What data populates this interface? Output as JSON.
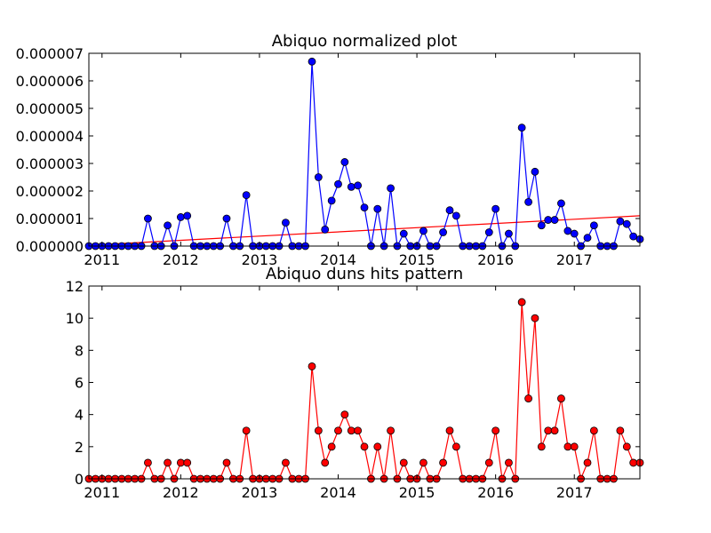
{
  "chart_data": [
    {
      "type": "line",
      "title": "Abiquo normalized plot",
      "color": "#0000ff",
      "x": [
        2010.833,
        2010.917,
        2011.0,
        2011.083,
        2011.167,
        2011.25,
        2011.333,
        2011.417,
        2011.5,
        2011.583,
        2011.667,
        2011.75,
        2011.833,
        2011.917,
        2012.0,
        2012.083,
        2012.167,
        2012.25,
        2012.333,
        2012.417,
        2012.5,
        2012.583,
        2012.667,
        2012.75,
        2012.833,
        2012.917,
        2013.0,
        2013.083,
        2013.167,
        2013.25,
        2013.333,
        2013.417,
        2013.5,
        2013.583,
        2013.667,
        2013.75,
        2013.833,
        2013.917,
        2014.0,
        2014.083,
        2014.167,
        2014.25,
        2014.333,
        2014.417,
        2014.5,
        2014.583,
        2014.667,
        2014.75,
        2014.833,
        2014.917,
        2015.0,
        2015.083,
        2015.167,
        2015.25,
        2015.333,
        2015.417,
        2015.5,
        2015.583,
        2015.667,
        2015.75,
        2015.833,
        2015.917,
        2016.0,
        2016.083,
        2016.167,
        2016.25,
        2016.333,
        2016.417,
        2016.5,
        2016.583,
        2016.667,
        2016.75,
        2016.833,
        2016.917,
        2017.0,
        2017.083,
        2017.167,
        2017.25,
        2017.333,
        2017.417,
        2017.5,
        2017.583,
        2017.667,
        2017.75,
        2017.833
      ],
      "values": [
        0,
        0,
        0,
        0,
        0,
        0,
        0,
        0,
        0,
        1e-06,
        0,
        0,
        7.5e-07,
        0,
        1.05e-06,
        1.1e-06,
        0,
        0,
        0,
        0,
        0,
        1e-06,
        0,
        0,
        1.85e-06,
        0,
        0,
        0,
        0,
        0,
        8.5e-07,
        0,
        0,
        0,
        6.7e-06,
        2.5e-06,
        6e-07,
        1.65e-06,
        2.25e-06,
        3.05e-06,
        2.15e-06,
        2.2e-06,
        1.4e-06,
        0,
        1.35e-06,
        0,
        2.1e-06,
        0,
        4.5e-07,
        0,
        0,
        5.5e-07,
        0,
        0,
        5e-07,
        1.3e-06,
        1.1e-06,
        0,
        0,
        0,
        0,
        5e-07,
        1.35e-06,
        0,
        4.5e-07,
        0,
        4.3e-06,
        1.6e-06,
        2.7e-06,
        7.5e-07,
        9.5e-07,
        9.5e-07,
        1.55e-06,
        5.5e-07,
        4.5e-07,
        0,
        3e-07,
        7.5e-07,
        0,
        0,
        0,
        9e-07,
        8e-07,
        3.5e-07,
        2.5e-07
      ],
      "trend": {
        "x": [
          2010.833,
          2017.833
        ],
        "values": [
          3e-08,
          1.1e-06
        ],
        "color": "#ff0000"
      },
      "xlim": [
        2010.833,
        2017.833
      ],
      "xticks": [
        2011,
        2012,
        2013,
        2014,
        2015,
        2016,
        2017
      ],
      "ylim": [
        0,
        7e-06
      ],
      "yticks": [
        {
          "value": 0,
          "label": "0.000000"
        },
        1e-06,
        2e-06,
        3e-06,
        4e-06,
        5e-06,
        6e-06,
        7e-06
      ]
    },
    {
      "type": "line",
      "title": "Abiquo duns hits pattern",
      "color": "#ff0000",
      "x": [
        2010.833,
        2010.917,
        2011.0,
        2011.083,
        2011.167,
        2011.25,
        2011.333,
        2011.417,
        2011.5,
        2011.583,
        2011.667,
        2011.75,
        2011.833,
        2011.917,
        2012.0,
        2012.083,
        2012.167,
        2012.25,
        2012.333,
        2012.417,
        2012.5,
        2012.583,
        2012.667,
        2012.75,
        2012.833,
        2012.917,
        2013.0,
        2013.083,
        2013.167,
        2013.25,
        2013.333,
        2013.417,
        2013.5,
        2013.583,
        2013.667,
        2013.75,
        2013.833,
        2013.917,
        2014.0,
        2014.083,
        2014.167,
        2014.25,
        2014.333,
        2014.417,
        2014.5,
        2014.583,
        2014.667,
        2014.75,
        2014.833,
        2014.917,
        2015.0,
        2015.083,
        2015.167,
        2015.25,
        2015.333,
        2015.417,
        2015.5,
        2015.583,
        2015.667,
        2015.75,
        2015.833,
        2015.917,
        2016.0,
        2016.083,
        2016.167,
        2016.25,
        2016.333,
        2016.417,
        2016.5,
        2016.583,
        2016.667,
        2016.75,
        2016.833,
        2016.917,
        2017.0,
        2017.083,
        2017.167,
        2017.25,
        2017.333,
        2017.417,
        2017.5,
        2017.583,
        2017.667,
        2017.75,
        2017.833
      ],
      "values": [
        0,
        0,
        0,
        0,
        0,
        0,
        0,
        0,
        0,
        1,
        0,
        0,
        1,
        0,
        1,
        1,
        0,
        0,
        0,
        0,
        0,
        1,
        0,
        0,
        3,
        0,
        0,
        0,
        0,
        0,
        1,
        0,
        0,
        0,
        7,
        3,
        1,
        2,
        3,
        4,
        3,
        3,
        2,
        0,
        2,
        0,
        3,
        0,
        1,
        0,
        0,
        1,
        0,
        0,
        1,
        3,
        2,
        0,
        0,
        0,
        0,
        1,
        3,
        0,
        1,
        0,
        11,
        5,
        10,
        2,
        3,
        3,
        5,
        2,
        2,
        0,
        1,
        3,
        0,
        0,
        0,
        3,
        2,
        1,
        1
      ],
      "xlim": [
        2010.833,
        2017.833
      ],
      "xticks": [
        2011,
        2012,
        2013,
        2014,
        2015,
        2016,
        2017
      ],
      "ylim": [
        0,
        12
      ],
      "yticks": [
        0,
        2,
        4,
        6,
        8,
        10,
        12
      ]
    }
  ]
}
